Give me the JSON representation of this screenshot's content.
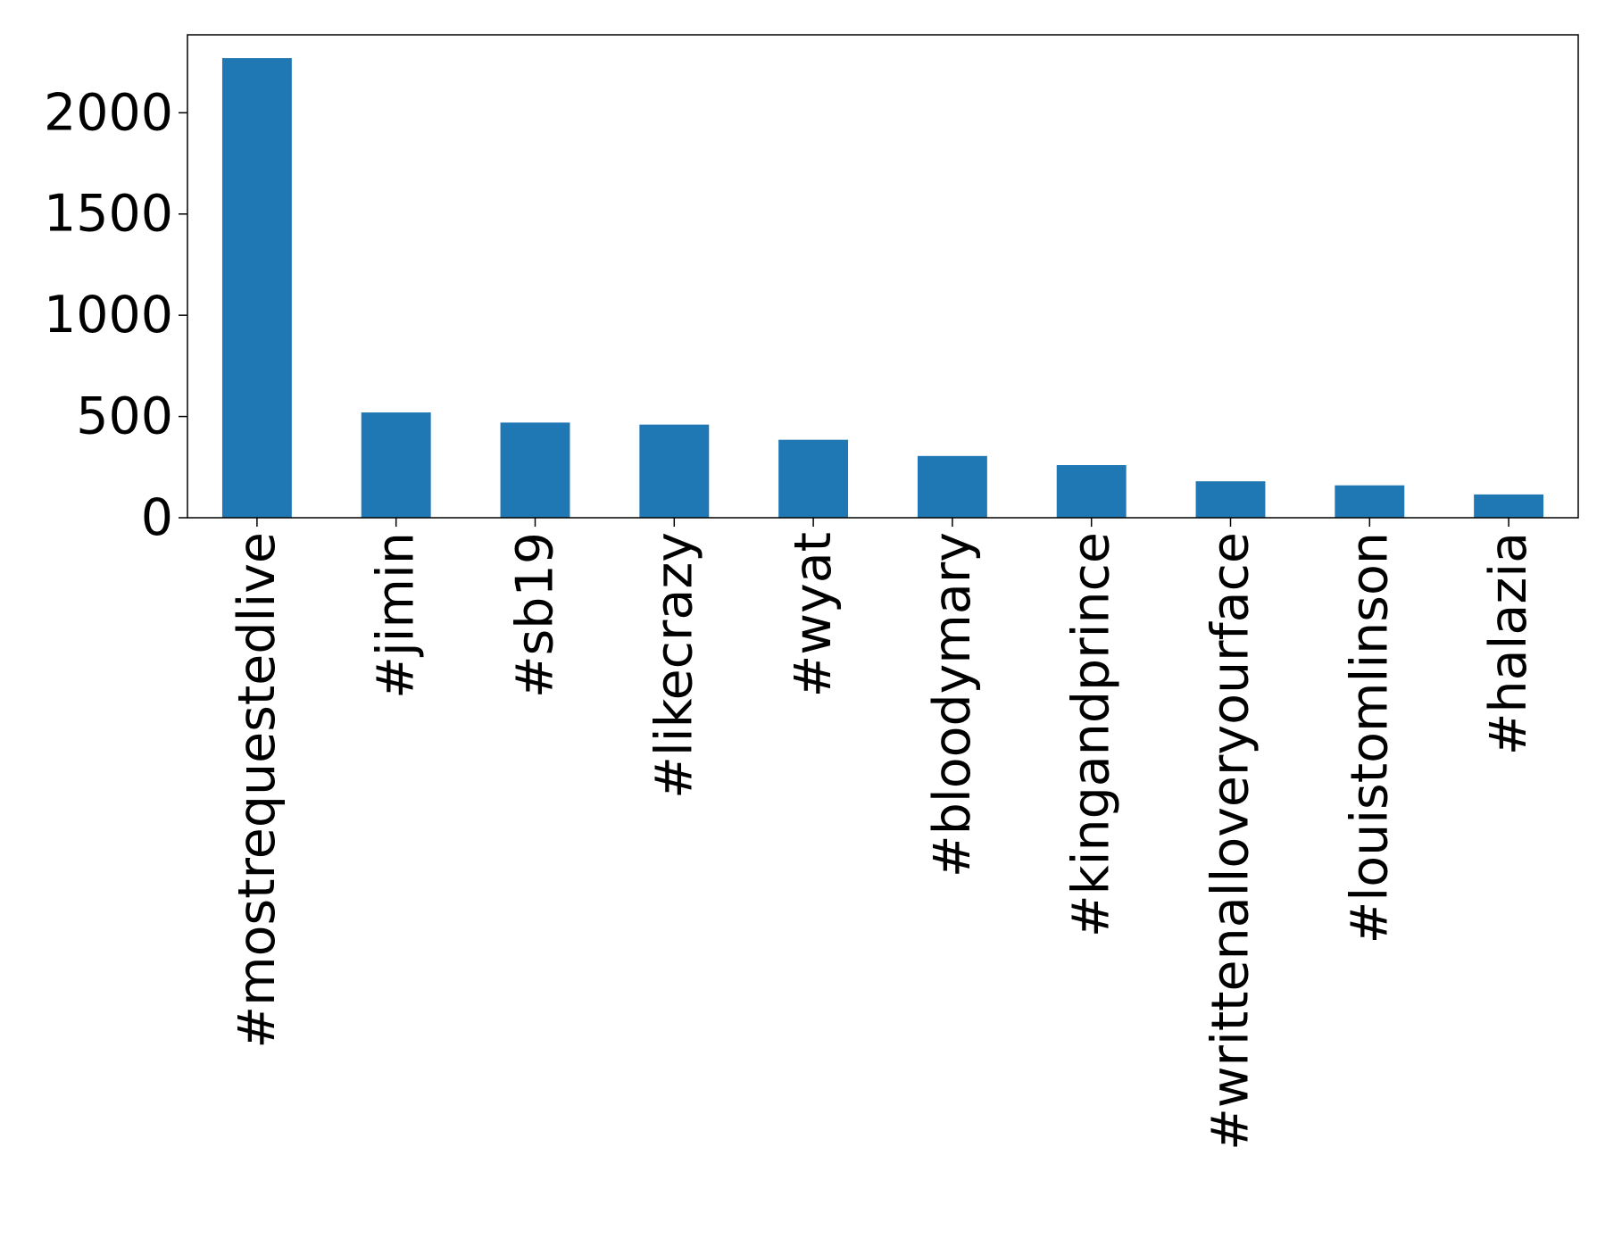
{
  "chart_data": {
    "type": "bar",
    "categories": [
      "#mostrequestedlive",
      "#jimin",
      "#sb19",
      "#likecrazy",
      "#wyat",
      "#bloodymary",
      "#kingandprince",
      "#writtenalloveryourface",
      "#louistomlinson",
      "#halazia"
    ],
    "values": [
      2270,
      520,
      470,
      460,
      385,
      305,
      260,
      180,
      160,
      115
    ],
    "color": "#1f77b4",
    "ylim": [
      0,
      2385
    ],
    "yticks": [
      0,
      500,
      1000,
      1500,
      2000
    ],
    "grid": false
  }
}
